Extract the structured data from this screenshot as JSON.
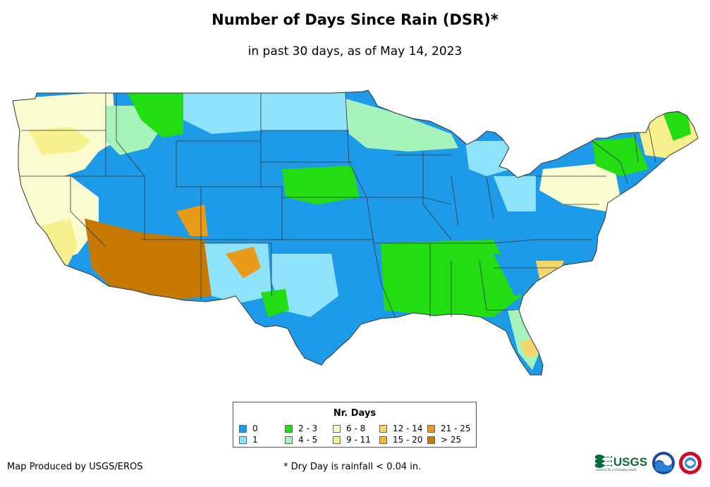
{
  "title": "Number of Days Since Rain (DSR)*",
  "subtitle": "in past 30 days, as of May 14, 2023",
  "legend": {
    "title": "Nr. Days",
    "items": [
      {
        "label": "0",
        "color": "#1e9be8"
      },
      {
        "label": "1",
        "color": "#8ee3fa"
      },
      {
        "label": "2 - 3",
        "color": "#22dd11"
      },
      {
        "label": "4 - 5",
        "color": "#a8f2bc"
      },
      {
        "label": "6 - 8",
        "color": "#fbfbd0"
      },
      {
        "label": "9 - 11",
        "color": "#f7f08e"
      },
      {
        "label": "12 - 14",
        "color": "#f4d66b"
      },
      {
        "label": "15 - 20",
        "color": "#f3b92a"
      },
      {
        "label": "21 - 25",
        "color": "#e89a19"
      },
      {
        "label": "> 25",
        "color": "#c87a00"
      }
    ]
  },
  "footer": {
    "produced_by": "Map Produced by USGS/EROS",
    "note": "* Dry Day is rainfall < 0.04 in."
  },
  "logos": {
    "usgs_text": "USGS",
    "usgs_tagline": "science for a changing world"
  }
}
